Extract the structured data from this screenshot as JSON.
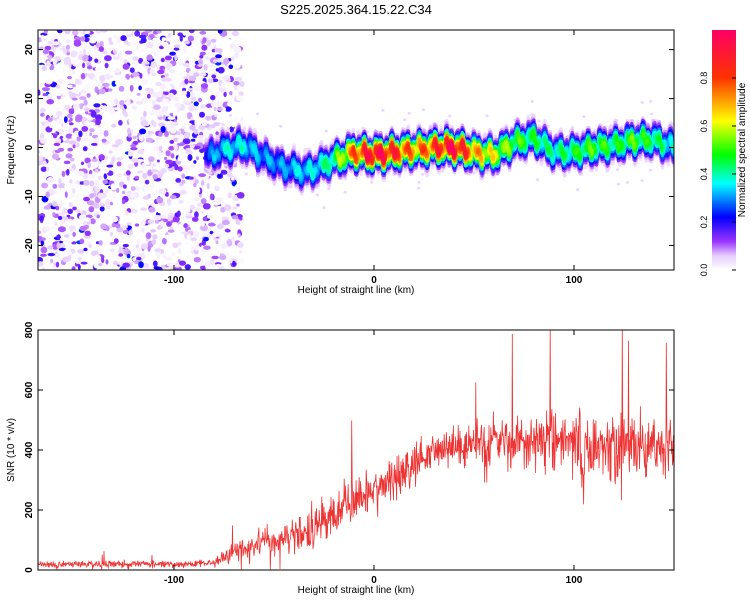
{
  "figure": {
    "title": "S225.2025.364.15.22.C34"
  },
  "chart_data": [
    {
      "type": "heatmap",
      "xlabel": "Height of straight line (km)",
      "ylabel": "Frequency (Hz)",
      "xlim": [
        -168,
        150
      ],
      "ylim": [
        -25,
        24
      ],
      "xticks": [
        -100,
        0,
        100
      ],
      "yticks": [
        -20,
        -10,
        0,
        10,
        20
      ],
      "colorbar": {
        "label": "Normalized spectral amplitude",
        "range": [
          0,
          1
        ],
        "ticks": [
          0.0,
          0.2,
          0.4,
          0.6,
          0.8
        ],
        "tick_labels": [
          "0.0",
          "0.2",
          "0.4",
          "0.6",
          "0.8"
        ]
      },
      "noise_region": {
        "x": [
          -168,
          -72
        ],
        "amplitude_range": [
          0.0,
          0.2
        ]
      },
      "ridge": {
        "x": [
          -84,
          -75,
          -65,
          -55,
          -45,
          -35,
          -30,
          -20,
          -10,
          0,
          10,
          20,
          30,
          40,
          50,
          60,
          70,
          80,
          90,
          100,
          110,
          120,
          130,
          140,
          150
        ],
        "freq": [
          -2,
          -0.5,
          0.5,
          -2,
          -4,
          -5,
          -4.5,
          -2.5,
          -1,
          -1.5,
          -1,
          -0.5,
          0,
          0,
          -1,
          -1.5,
          1,
          2,
          -1,
          -1,
          0,
          0.5,
          1.5,
          1.5,
          0
        ],
        "peak_amplitude": [
          0.25,
          0.35,
          0.35,
          0.3,
          0.3,
          0.35,
          0.35,
          0.45,
          0.75,
          0.95,
          0.85,
          0.7,
          0.8,
          0.95,
          0.7,
          0.6,
          0.5,
          0.45,
          0.4,
          0.45,
          0.5,
          0.45,
          0.5,
          0.45,
          0.35
        ]
      }
    },
    {
      "type": "line",
      "xlabel": "Height of straight line (km)",
      "ylabel": "SNR (10 * v/v)",
      "xlim": [
        -168,
        150
      ],
      "ylim": [
        0,
        800
      ],
      "xticks": [
        -100,
        0,
        100
      ],
      "yticks": [
        0,
        200,
        400,
        600,
        800
      ],
      "color": "#ee3333",
      "series": [
        {
          "x": [
            -168,
            -150,
            -130,
            -110,
            -90,
            -80,
            -75,
            -70,
            -60,
            -50,
            -40,
            -30,
            -20,
            -10,
            0,
            10,
            20,
            30,
            40,
            50,
            60,
            70,
            80,
            90,
            100,
            110,
            120,
            130,
            140,
            150
          ],
          "values": [
            20,
            20,
            20,
            20,
            20,
            25,
            45,
            60,
            80,
            100,
            120,
            150,
            190,
            230,
            260,
            300,
            350,
            400,
            410,
            420,
            430,
            425,
            440,
            430,
            420,
            410,
            425,
            420,
            410,
            400
          ],
          "spread": [
            15,
            15,
            15,
            15,
            15,
            20,
            30,
            40,
            60,
            70,
            80,
            90,
            100,
            100,
            110,
            110,
            100,
            80,
            80,
            90,
            100,
            110,
            130,
            140,
            140,
            140,
            140,
            130,
            120,
            110
          ]
        }
      ]
    }
  ]
}
